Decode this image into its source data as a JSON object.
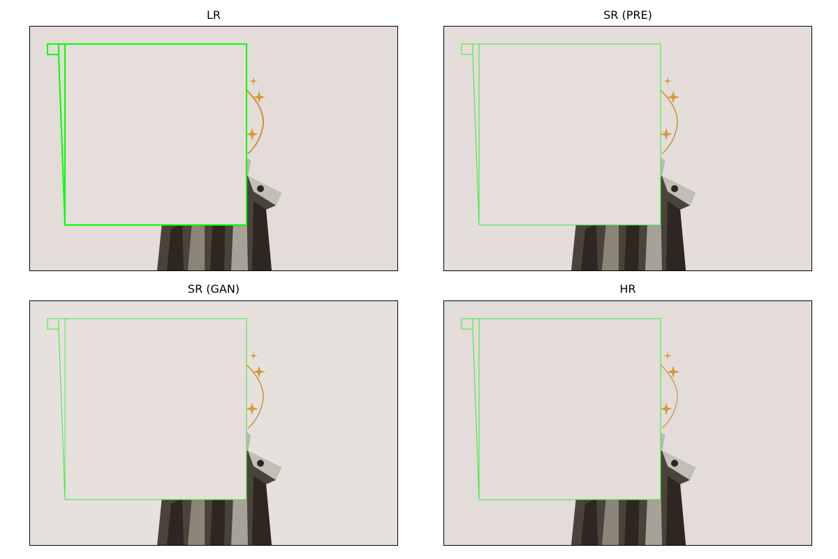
{
  "figure": {
    "panels": [
      {
        "title": "LR"
      },
      {
        "title": "SR (PRE)"
      },
      {
        "title": "SR (GAN)"
      },
      {
        "title": "HR"
      }
    ]
  },
  "colors": {
    "background_tone": "#e4dcd8",
    "zoom_inset_fill": "#e6dedb",
    "zoom_box_stroke": "#00ff00",
    "statue_dark": "#2e2620",
    "statue_light": "#b9b7ad",
    "halo_gold": "#c8923a"
  },
  "icons": {
    "statue": "statue-image",
    "zoom_box": "zoom-box-outline"
  }
}
